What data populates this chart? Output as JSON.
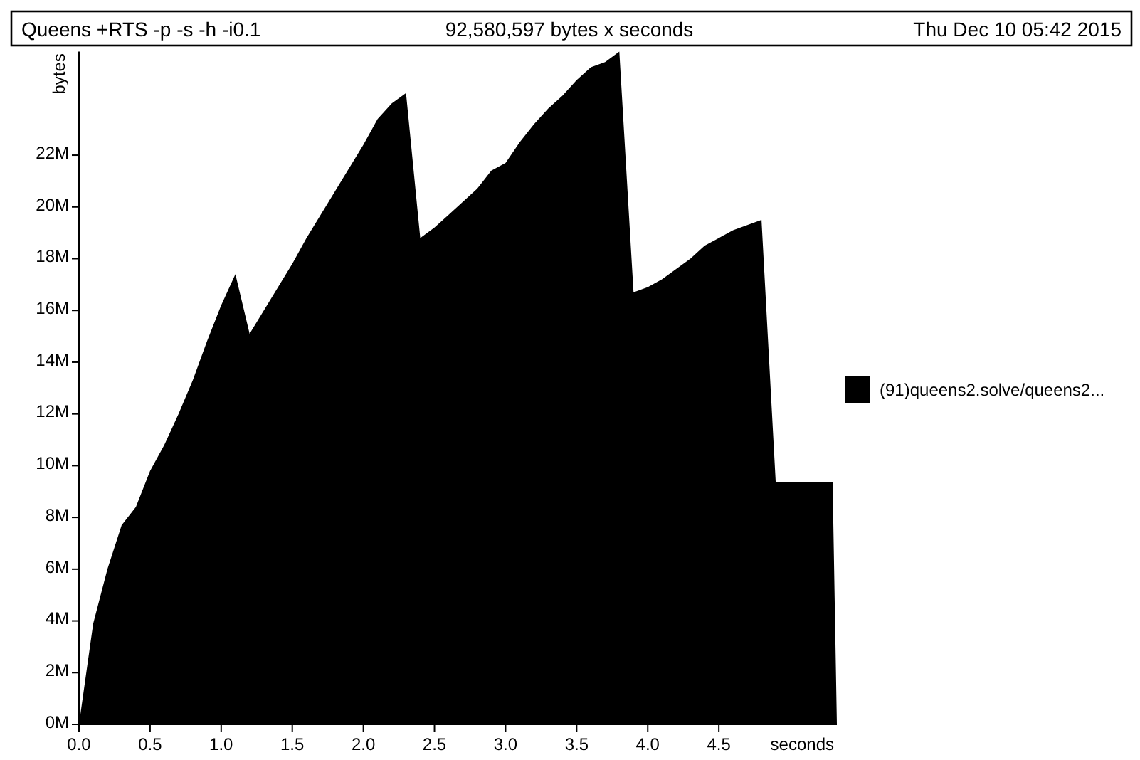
{
  "chart_data": {
    "type": "area",
    "title": "Queens +RTS -p -s -h -i0.1",
    "subtitle": "92,580,597 bytes x seconds",
    "annotations": [
      "Thu Dec 10 05:42 2015"
    ],
    "xlabel": "seconds",
    "ylabel": "bytes",
    "series": [
      {
        "name": "(91)queens2.solve/queens2...",
        "color": "#000000",
        "x": [
          0,
          0.1,
          0.2,
          0.3,
          0.4,
          0.5,
          0.6,
          0.7,
          0.8,
          0.9,
          1.0,
          1.1,
          1.2,
          1.3,
          1.4,
          1.5,
          1.6,
          1.7,
          1.8,
          1.9,
          2.0,
          2.1,
          2.2,
          2.3,
          2.4,
          2.5,
          2.6,
          2.7,
          2.8,
          2.9,
          3.0,
          3.1,
          3.2,
          3.3,
          3.4,
          3.5,
          3.6,
          3.7,
          3.8,
          3.9,
          4.0,
          4.1,
          4.2,
          4.3,
          4.4,
          4.5,
          4.6,
          4.7,
          4.8,
          4.9,
          5.3,
          5.33
        ],
        "values": [
          0,
          3.9,
          6.0,
          7.7,
          8.4,
          9.8,
          10.8,
          12.0,
          13.3,
          14.8,
          16.2,
          17.4,
          15.1,
          16.0,
          16.9,
          17.8,
          18.8,
          19.7,
          20.6,
          21.5,
          22.4,
          23.4,
          24.0,
          24.4,
          18.8,
          19.2,
          19.7,
          20.2,
          20.7,
          21.4,
          21.7,
          22.5,
          23.2,
          23.8,
          24.3,
          24.9,
          25.4,
          25.6,
          26.0,
          16.7,
          16.9,
          17.2,
          17.6,
          18.0,
          18.5,
          18.8,
          19.1,
          19.3,
          19.5,
          9.35,
          9.35,
          0
        ]
      }
    ],
    "xlim": [
      0,
      5.33
    ],
    "ylim": [
      0,
      26
    ],
    "xticks": [
      {
        "value": 0,
        "label": "0.0"
      },
      {
        "value": 0.5,
        "label": "0.5"
      },
      {
        "value": 1,
        "label": "1.0"
      },
      {
        "value": 1.5,
        "label": "1.5"
      },
      {
        "value": 2,
        "label": "2.0"
      },
      {
        "value": 2.5,
        "label": "2.5"
      },
      {
        "value": 3,
        "label": "3.0"
      },
      {
        "value": 3.5,
        "label": "3.5"
      },
      {
        "value": 4,
        "label": "4.0"
      },
      {
        "value": 4.5,
        "label": "4.5"
      }
    ],
    "yticks": [
      {
        "value": 0,
        "label": "0M"
      },
      {
        "value": 2,
        "label": "2M"
      },
      {
        "value": 4,
        "label": "4M"
      },
      {
        "value": 6,
        "label": "6M"
      },
      {
        "value": 8,
        "label": "8M"
      },
      {
        "value": 10,
        "label": "10M"
      },
      {
        "value": 12,
        "label": "12M"
      },
      {
        "value": 14,
        "label": "14M"
      },
      {
        "value": 16,
        "label": "16M"
      },
      {
        "value": 18,
        "label": "18M"
      },
      {
        "value": 20,
        "label": "20M"
      },
      {
        "value": 22,
        "label": "22M"
      }
    ],
    "legend": "right",
    "grid": false
  }
}
